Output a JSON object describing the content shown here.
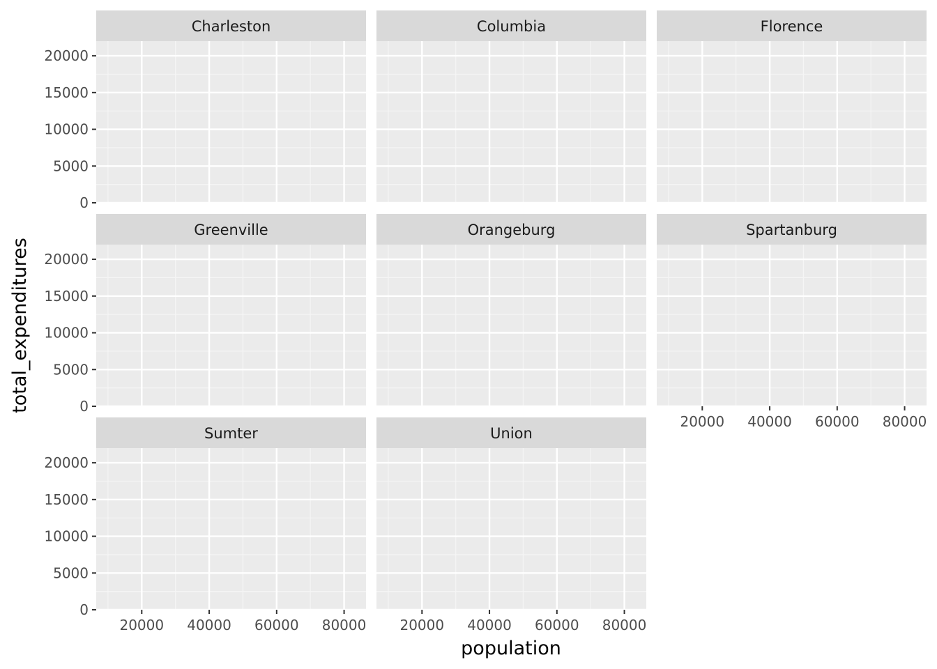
{
  "chart_data": {
    "type": "scatter",
    "facet_by": "city",
    "facets": [
      "Charleston",
      "Columbia",
      "Florence",
      "Greenville",
      "Orangeburg",
      "Spartanburg",
      "Sumter",
      "Union"
    ],
    "x": [],
    "y": [],
    "xlabel": "population",
    "ylabel": "total_expenditures",
    "xlim": [
      6500,
      86500
    ],
    "ylim": [
      0,
      22000
    ],
    "x_ticks": [
      20000,
      40000,
      60000,
      80000
    ],
    "y_ticks": [
      0,
      5000,
      10000,
      15000,
      20000
    ],
    "x_minor": [
      10000,
      30000,
      50000,
      70000
    ],
    "y_minor": [
      2500,
      7500,
      12500,
      17500
    ],
    "grid": true,
    "legend": "none",
    "colors": {
      "panel_bg": "#ebebeb",
      "strip_bg": "#d9d9d9",
      "grid_major": "#ffffff",
      "grid_minor": "#f5f5f5",
      "tick": "#333333"
    }
  }
}
